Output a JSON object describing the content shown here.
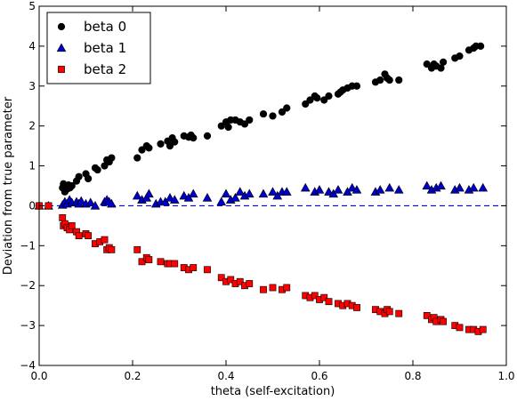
{
  "chart_data": {
    "type": "scatter",
    "xlabel": "theta (self-excitation)",
    "ylabel": "Deviation from true parameter",
    "xlim": [
      0.0,
      1.0
    ],
    "ylim": [
      -4,
      5
    ],
    "xticks": [
      "0.0",
      "0.2",
      "0.4",
      "0.6",
      "0.8",
      "1.0"
    ],
    "xtick_values": [
      0.0,
      0.2,
      0.4,
      0.6,
      0.8,
      1.0
    ],
    "yticks": [
      "−4",
      "−3",
      "−2",
      "−1",
      "0",
      "1",
      "2",
      "3",
      "4",
      "5"
    ],
    "ytick_values": [
      -4,
      -3,
      -2,
      -1,
      0,
      1,
      2,
      3,
      4,
      5
    ],
    "grid": false,
    "legend_position": "top-left",
    "reference_line": {
      "y": 0,
      "style": "dashed",
      "color": "#0000ff"
    },
    "series": [
      {
        "name": "beta 0",
        "marker": "circle",
        "color": "#000000",
        "points": [
          [
            0.0,
            0.0
          ],
          [
            0.02,
            0.0
          ],
          [
            0.05,
            0.45
          ],
          [
            0.052,
            0.55
          ],
          [
            0.055,
            0.35
          ],
          [
            0.058,
            0.5
          ],
          [
            0.06,
            0.42
          ],
          [
            0.063,
            0.52
          ],
          [
            0.066,
            0.45
          ],
          [
            0.07,
            0.5
          ],
          [
            0.08,
            0.62
          ],
          [
            0.085,
            0.73
          ],
          [
            0.1,
            0.8
          ],
          [
            0.105,
            0.68
          ],
          [
            0.12,
            0.95
          ],
          [
            0.125,
            0.9
          ],
          [
            0.14,
            1.0
          ],
          [
            0.145,
            1.15
          ],
          [
            0.15,
            1.1
          ],
          [
            0.155,
            1.2
          ],
          [
            0.21,
            1.2
          ],
          [
            0.22,
            1.4
          ],
          [
            0.23,
            1.5
          ],
          [
            0.235,
            1.45
          ],
          [
            0.26,
            1.55
          ],
          [
            0.275,
            1.62
          ],
          [
            0.28,
            1.5
          ],
          [
            0.285,
            1.7
          ],
          [
            0.29,
            1.6
          ],
          [
            0.31,
            1.75
          ],
          [
            0.32,
            1.72
          ],
          [
            0.325,
            1.77
          ],
          [
            0.33,
            1.7
          ],
          [
            0.36,
            1.75
          ],
          [
            0.39,
            2.0
          ],
          [
            0.4,
            2.1
          ],
          [
            0.405,
            1.97
          ],
          [
            0.41,
            2.15
          ],
          [
            0.42,
            2.15
          ],
          [
            0.43,
            2.1
          ],
          [
            0.44,
            2.05
          ],
          [
            0.45,
            2.15
          ],
          [
            0.48,
            2.3
          ],
          [
            0.5,
            2.25
          ],
          [
            0.52,
            2.35
          ],
          [
            0.53,
            2.45
          ],
          [
            0.57,
            2.55
          ],
          [
            0.58,
            2.65
          ],
          [
            0.59,
            2.75
          ],
          [
            0.595,
            2.7
          ],
          [
            0.61,
            2.65
          ],
          [
            0.62,
            2.75
          ],
          [
            0.64,
            2.8
          ],
          [
            0.645,
            2.85
          ],
          [
            0.65,
            2.9
          ],
          [
            0.66,
            2.95
          ],
          [
            0.67,
            3.0
          ],
          [
            0.68,
            3.0
          ],
          [
            0.72,
            3.1
          ],
          [
            0.73,
            3.15
          ],
          [
            0.74,
            3.3
          ],
          [
            0.745,
            3.2
          ],
          [
            0.75,
            3.15
          ],
          [
            0.77,
            3.15
          ],
          [
            0.83,
            3.55
          ],
          [
            0.84,
            3.45
          ],
          [
            0.845,
            3.55
          ],
          [
            0.85,
            3.5
          ],
          [
            0.86,
            3.45
          ],
          [
            0.865,
            3.6
          ],
          [
            0.89,
            3.7
          ],
          [
            0.9,
            3.75
          ],
          [
            0.92,
            3.9
          ],
          [
            0.93,
            3.95
          ],
          [
            0.935,
            4.0
          ],
          [
            0.945,
            4.0
          ]
        ]
      },
      {
        "name": "beta 1",
        "marker": "triangle",
        "color": "#0000cc",
        "points": [
          [
            0.0,
            0.0
          ],
          [
            0.02,
            0.0
          ],
          [
            0.05,
            0.02
          ],
          [
            0.055,
            0.1
          ],
          [
            0.06,
            0.05
          ],
          [
            0.065,
            0.15
          ],
          [
            0.07,
            0.08
          ],
          [
            0.08,
            0.1
          ],
          [
            0.085,
            0.05
          ],
          [
            0.09,
            0.12
          ],
          [
            0.1,
            0.05
          ],
          [
            0.11,
            0.08
          ],
          [
            0.12,
            0.0
          ],
          [
            0.14,
            0.1
          ],
          [
            0.145,
            0.15
          ],
          [
            0.15,
            0.1
          ],
          [
            0.155,
            0.05
          ],
          [
            0.21,
            0.25
          ],
          [
            0.22,
            0.15
          ],
          [
            0.23,
            0.2
          ],
          [
            0.235,
            0.3
          ],
          [
            0.25,
            0.05
          ],
          [
            0.26,
            0.1
          ],
          [
            0.27,
            0.1
          ],
          [
            0.28,
            0.2
          ],
          [
            0.29,
            0.15
          ],
          [
            0.31,
            0.25
          ],
          [
            0.32,
            0.2
          ],
          [
            0.33,
            0.3
          ],
          [
            0.36,
            0.2
          ],
          [
            0.39,
            0.1
          ],
          [
            0.4,
            0.3
          ],
          [
            0.41,
            0.15
          ],
          [
            0.42,
            0.2
          ],
          [
            0.43,
            0.35
          ],
          [
            0.44,
            0.25
          ],
          [
            0.45,
            0.3
          ],
          [
            0.48,
            0.3
          ],
          [
            0.5,
            0.35
          ],
          [
            0.51,
            0.25
          ],
          [
            0.52,
            0.35
          ],
          [
            0.53,
            0.35
          ],
          [
            0.57,
            0.45
          ],
          [
            0.59,
            0.35
          ],
          [
            0.6,
            0.4
          ],
          [
            0.62,
            0.35
          ],
          [
            0.63,
            0.3
          ],
          [
            0.64,
            0.4
          ],
          [
            0.66,
            0.35
          ],
          [
            0.67,
            0.45
          ],
          [
            0.68,
            0.4
          ],
          [
            0.72,
            0.35
          ],
          [
            0.73,
            0.4
          ],
          [
            0.75,
            0.45
          ],
          [
            0.77,
            0.4
          ],
          [
            0.83,
            0.5
          ],
          [
            0.84,
            0.4
          ],
          [
            0.85,
            0.45
          ],
          [
            0.86,
            0.5
          ],
          [
            0.89,
            0.4
          ],
          [
            0.9,
            0.45
          ],
          [
            0.92,
            0.4
          ],
          [
            0.93,
            0.45
          ],
          [
            0.95,
            0.45
          ]
        ]
      },
      {
        "name": "beta 2",
        "marker": "square",
        "color": "#ff0000",
        "points": [
          [
            0.0,
            0.0
          ],
          [
            0.02,
            0.0
          ],
          [
            0.05,
            -0.3
          ],
          [
            0.052,
            -0.5
          ],
          [
            0.055,
            -0.45
          ],
          [
            0.06,
            -0.55
          ],
          [
            0.065,
            -0.6
          ],
          [
            0.07,
            -0.5
          ],
          [
            0.08,
            -0.65
          ],
          [
            0.085,
            -0.75
          ],
          [
            0.1,
            -0.7
          ],
          [
            0.105,
            -0.75
          ],
          [
            0.12,
            -0.95
          ],
          [
            0.13,
            -0.9
          ],
          [
            0.14,
            -0.85
          ],
          [
            0.145,
            -1.1
          ],
          [
            0.15,
            -1.05
          ],
          [
            0.155,
            -1.1
          ],
          [
            0.21,
            -1.1
          ],
          [
            0.22,
            -1.4
          ],
          [
            0.23,
            -1.3
          ],
          [
            0.235,
            -1.35
          ],
          [
            0.26,
            -1.4
          ],
          [
            0.275,
            -1.45
          ],
          [
            0.28,
            -1.45
          ],
          [
            0.29,
            -1.45
          ],
          [
            0.31,
            -1.55
          ],
          [
            0.32,
            -1.6
          ],
          [
            0.33,
            -1.55
          ],
          [
            0.36,
            -1.6
          ],
          [
            0.39,
            -1.8
          ],
          [
            0.4,
            -1.9
          ],
          [
            0.41,
            -1.85
          ],
          [
            0.42,
            -1.95
          ],
          [
            0.43,
            -1.9
          ],
          [
            0.44,
            -2.0
          ],
          [
            0.45,
            -1.95
          ],
          [
            0.48,
            -2.1
          ],
          [
            0.5,
            -2.05
          ],
          [
            0.52,
            -2.1
          ],
          [
            0.53,
            -2.05
          ],
          [
            0.57,
            -2.25
          ],
          [
            0.58,
            -2.3
          ],
          [
            0.59,
            -2.25
          ],
          [
            0.6,
            -2.35
          ],
          [
            0.61,
            -2.3
          ],
          [
            0.62,
            -2.4
          ],
          [
            0.64,
            -2.45
          ],
          [
            0.65,
            -2.5
          ],
          [
            0.66,
            -2.45
          ],
          [
            0.67,
            -2.5
          ],
          [
            0.68,
            -2.55
          ],
          [
            0.72,
            -2.6
          ],
          [
            0.73,
            -2.65
          ],
          [
            0.74,
            -2.7
          ],
          [
            0.745,
            -2.6
          ],
          [
            0.75,
            -2.65
          ],
          [
            0.77,
            -2.7
          ],
          [
            0.83,
            -2.75
          ],
          [
            0.84,
            -2.85
          ],
          [
            0.845,
            -2.8
          ],
          [
            0.85,
            -2.9
          ],
          [
            0.86,
            -2.85
          ],
          [
            0.865,
            -2.9
          ],
          [
            0.89,
            -3.0
          ],
          [
            0.9,
            -3.05
          ],
          [
            0.92,
            -3.1
          ],
          [
            0.93,
            -3.1
          ],
          [
            0.94,
            -3.15
          ],
          [
            0.95,
            -3.1
          ]
        ]
      }
    ]
  }
}
